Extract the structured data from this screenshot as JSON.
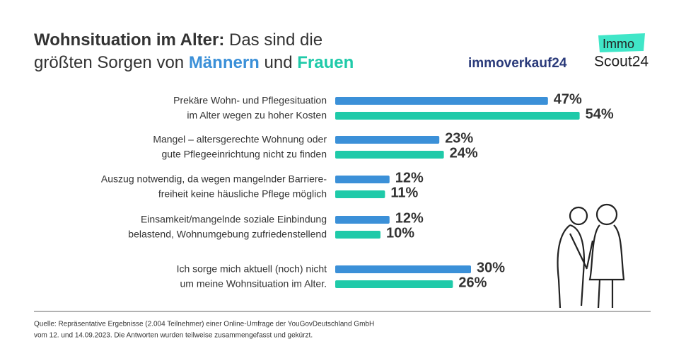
{
  "chart_data": {
    "type": "bar",
    "orientation": "horizontal",
    "title_parts": [
      "Wohnsituation im Alter:",
      "Das sind die",
      "größten Sorgen von",
      "und"
    ],
    "logos": [
      "immoverkauf24",
      "Immo",
      "Scout24"
    ],
    "categories": [
      [
        "Prekäre Wohn- und Pflegesituation",
        "im Alter wegen zu hoher Kosten"
      ],
      [
        "Mangel – altersgerechte Wohnung oder",
        "gute Pflegeeinrichtung nicht zu finden"
      ],
      [
        "Auszug notwendig, da wegen mangelnder Barriere-",
        "freiheit keine häusliche Pflege möglich"
      ],
      [
        "Einsamkeit/mangelnde soziale Einbindung",
        "belastend, Wohnumgebung zufriedenstellend"
      ],
      [
        "Ich sorge mich aktuell (noch) nicht",
        "um meine Wohnsituation im Alter."
      ]
    ],
    "series": [
      {
        "name": "Männern",
        "color": "#3b90d8",
        "values": [
          47,
          23,
          12,
          12,
          30
        ],
        "value_labels": [
          "47%",
          "23%",
          "12%",
          "12%",
          "30%"
        ]
      },
      {
        "name": "Frauen",
        "color": "#1fcaa9",
        "values": [
          54,
          24,
          11,
          10,
          26
        ],
        "value_labels": [
          "54%",
          "24%",
          "11%",
          "10%",
          "26%"
        ]
      }
    ],
    "xlim": [
      0,
      100
    ],
    "source": [
      "Quelle: Repräsentative Ergebnisse (2.004 Teilnehmer) einer Online-Umfrage der YouGovDeutschland GmbH",
      "vom 12. und 14.09.2023. Die Antworten wurden teilweise zusammengefasst und gekürzt."
    ]
  }
}
